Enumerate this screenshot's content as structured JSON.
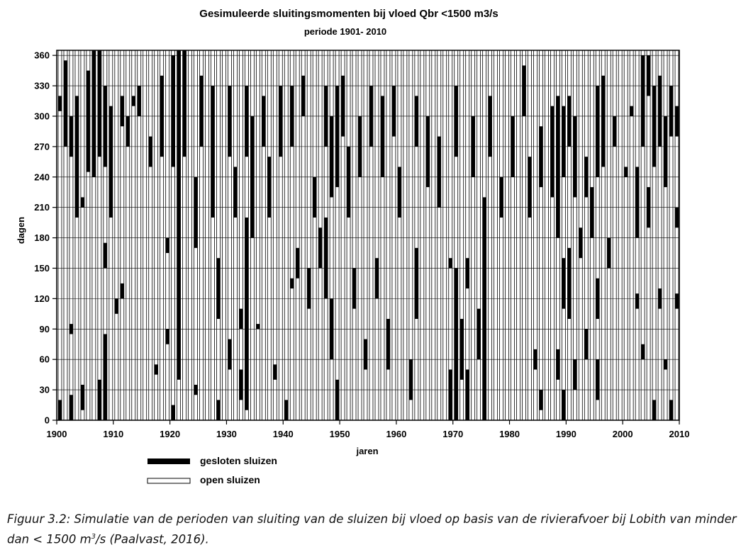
{
  "chart_data": {
    "type": "bar",
    "title": "Gesimuleerde sluitingsmomenten bij vloed Qbr <1500 m3/s",
    "subtitle": "periode 1901- 2010",
    "xlabel": "jaren",
    "ylabel": "dagen",
    "xlim": [
      1900,
      2010
    ],
    "ylim": [
      0,
      365
    ],
    "x_ticks": [
      "1900",
      "1910",
      "1920",
      "1930",
      "1940",
      "1950",
      "1960",
      "1970",
      "1980",
      "1990",
      "2000",
      "2010"
    ],
    "y_ticks": [
      "0",
      "30",
      "60",
      "90",
      "120",
      "150",
      "180",
      "210",
      "240",
      "270",
      "300",
      "330",
      "360"
    ],
    "years": [
      1901,
      2010
    ],
    "days_per_year": 365,
    "grid": "horizontal",
    "legend_position": "bottom-left",
    "series": [
      {
        "name": "gesloten sluizen",
        "color": "#000000"
      },
      {
        "name": "open sluizen",
        "color": "#ffffff"
      }
    ],
    "closed_periods": [
      {
        "year": 1901,
        "from": 0,
        "to": 20
      },
      {
        "year": 1901,
        "from": 305,
        "to": 320
      },
      {
        "year": 1902,
        "from": 270,
        "to": 355
      },
      {
        "year": 1903,
        "from": 0,
        "to": 25
      },
      {
        "year": 1903,
        "from": 85,
        "to": 95
      },
      {
        "year": 1903,
        "from": 260,
        "to": 300
      },
      {
        "year": 1904,
        "from": 200,
        "to": 320
      },
      {
        "year": 1905,
        "from": 10,
        "to": 35
      },
      {
        "year": 1905,
        "from": 210,
        "to": 220
      },
      {
        "year": 1906,
        "from": 245,
        "to": 345
      },
      {
        "year": 1907,
        "from": 240,
        "to": 365
      },
      {
        "year": 1908,
        "from": 0,
        "to": 40
      },
      {
        "year": 1908,
        "from": 260,
        "to": 365
      },
      {
        "year": 1909,
        "from": 0,
        "to": 85
      },
      {
        "year": 1909,
        "from": 150,
        "to": 175
      },
      {
        "year": 1909,
        "from": 250,
        "to": 330
      },
      {
        "year": 1910,
        "from": 200,
        "to": 310
      },
      {
        "year": 1911,
        "from": 105,
        "to": 120
      },
      {
        "year": 1912,
        "from": 120,
        "to": 135
      },
      {
        "year": 1912,
        "from": 290,
        "to": 320
      },
      {
        "year": 1913,
        "from": 270,
        "to": 300
      },
      {
        "year": 1914,
        "from": 310,
        "to": 320
      },
      {
        "year": 1915,
        "from": 300,
        "to": 330
      },
      {
        "year": 1917,
        "from": 250,
        "to": 280
      },
      {
        "year": 1918,
        "from": 45,
        "to": 55
      },
      {
        "year": 1919,
        "from": 260,
        "to": 340
      },
      {
        "year": 1920,
        "from": 165,
        "to": 180
      },
      {
        "year": 1920,
        "from": 75,
        "to": 90
      },
      {
        "year": 1921,
        "from": 0,
        "to": 15
      },
      {
        "year": 1921,
        "from": 250,
        "to": 360
      },
      {
        "year": 1922,
        "from": 40,
        "to": 365
      },
      {
        "year": 1923,
        "from": 260,
        "to": 365
      },
      {
        "year": 1925,
        "from": 170,
        "to": 240
      },
      {
        "year": 1925,
        "from": 25,
        "to": 35
      },
      {
        "year": 1926,
        "from": 270,
        "to": 340
      },
      {
        "year": 1928,
        "from": 200,
        "to": 330
      },
      {
        "year": 1929,
        "from": 0,
        "to": 20
      },
      {
        "year": 1929,
        "from": 100,
        "to": 160
      },
      {
        "year": 1931,
        "from": 50,
        "to": 80
      },
      {
        "year": 1931,
        "from": 260,
        "to": 330
      },
      {
        "year": 1932,
        "from": 200,
        "to": 250
      },
      {
        "year": 1933,
        "from": 20,
        "to": 50
      },
      {
        "year": 1933,
        "from": 90,
        "to": 110
      },
      {
        "year": 1934,
        "from": 10,
        "to": 200
      },
      {
        "year": 1934,
        "from": 260,
        "to": 330
      },
      {
        "year": 1935,
        "from": 180,
        "to": 300
      },
      {
        "year": 1936,
        "from": 90,
        "to": 95
      },
      {
        "year": 1937,
        "from": 270,
        "to": 320
      },
      {
        "year": 1938,
        "from": 200,
        "to": 260
      },
      {
        "year": 1939,
        "from": 40,
        "to": 55
      },
      {
        "year": 1940,
        "from": 260,
        "to": 330
      },
      {
        "year": 1941,
        "from": 0,
        "to": 20
      },
      {
        "year": 1942,
        "from": 270,
        "to": 330
      },
      {
        "year": 1942,
        "from": 130,
        "to": 140
      },
      {
        "year": 1943,
        "from": 140,
        "to": 170
      },
      {
        "year": 1944,
        "from": 300,
        "to": 340
      },
      {
        "year": 1945,
        "from": 110,
        "to": 150
      },
      {
        "year": 1946,
        "from": 200,
        "to": 240
      },
      {
        "year": 1947,
        "from": 150,
        "to": 190
      },
      {
        "year": 1948,
        "from": 120,
        "to": 200
      },
      {
        "year": 1948,
        "from": 270,
        "to": 330
      },
      {
        "year": 1949,
        "from": 60,
        "to": 120
      },
      {
        "year": 1949,
        "from": 220,
        "to": 300
      },
      {
        "year": 1950,
        "from": 0,
        "to": 40
      },
      {
        "year": 1950,
        "from": 230,
        "to": 330
      },
      {
        "year": 1951,
        "from": 280,
        "to": 340
      },
      {
        "year": 1952,
        "from": 200,
        "to": 270
      },
      {
        "year": 1953,
        "from": 110,
        "to": 150
      },
      {
        "year": 1954,
        "from": 240,
        "to": 300
      },
      {
        "year": 1955,
        "from": 50,
        "to": 80
      },
      {
        "year": 1956,
        "from": 270,
        "to": 330
      },
      {
        "year": 1957,
        "from": 120,
        "to": 160
      },
      {
        "year": 1958,
        "from": 240,
        "to": 320
      },
      {
        "year": 1959,
        "from": 50,
        "to": 100
      },
      {
        "year": 1960,
        "from": 280,
        "to": 330
      },
      {
        "year": 1961,
        "from": 200,
        "to": 250
      },
      {
        "year": 1963,
        "from": 20,
        "to": 60
      },
      {
        "year": 1964,
        "from": 100,
        "to": 170
      },
      {
        "year": 1964,
        "from": 270,
        "to": 320
      },
      {
        "year": 1966,
        "from": 230,
        "to": 300
      },
      {
        "year": 1968,
        "from": 210,
        "to": 280
      },
      {
        "year": 1970,
        "from": 0,
        "to": 50
      },
      {
        "year": 1970,
        "from": 150,
        "to": 160
      },
      {
        "year": 1971,
        "from": 0,
        "to": 150
      },
      {
        "year": 1971,
        "from": 260,
        "to": 330
      },
      {
        "year": 1972,
        "from": 40,
        "to": 100
      },
      {
        "year": 1973,
        "from": 0,
        "to": 50
      },
      {
        "year": 1973,
        "from": 130,
        "to": 160
      },
      {
        "year": 1974,
        "from": 240,
        "to": 300
      },
      {
        "year": 1975,
        "from": 60,
        "to": 110
      },
      {
        "year": 1976,
        "from": 0,
        "to": 220
      },
      {
        "year": 1977,
        "from": 260,
        "to": 320
      },
      {
        "year": 1979,
        "from": 200,
        "to": 240
      },
      {
        "year": 1981,
        "from": 240,
        "to": 300
      },
      {
        "year": 1983,
        "from": 300,
        "to": 350
      },
      {
        "year": 1984,
        "from": 200,
        "to": 260
      },
      {
        "year": 1985,
        "from": 50,
        "to": 70
      },
      {
        "year": 1986,
        "from": 10,
        "to": 30
      },
      {
        "year": 1986,
        "from": 230,
        "to": 290
      },
      {
        "year": 1988,
        "from": 220,
        "to": 310
      },
      {
        "year": 1989,
        "from": 40,
        "to": 70
      },
      {
        "year": 1989,
        "from": 180,
        "to": 320
      },
      {
        "year": 1990,
        "from": 0,
        "to": 30
      },
      {
        "year": 1990,
        "from": 110,
        "to": 160
      },
      {
        "year": 1990,
        "from": 240,
        "to": 310
      },
      {
        "year": 1991,
        "from": 100,
        "to": 170
      },
      {
        "year": 1991,
        "from": 270,
        "to": 320
      },
      {
        "year": 1992,
        "from": 30,
        "to": 60
      },
      {
        "year": 1992,
        "from": 220,
        "to": 300
      },
      {
        "year": 1993,
        "from": 160,
        "to": 190
      },
      {
        "year": 1994,
        "from": 60,
        "to": 90
      },
      {
        "year": 1994,
        "from": 220,
        "to": 260
      },
      {
        "year": 1995,
        "from": 180,
        "to": 230
      },
      {
        "year": 1996,
        "from": 20,
        "to": 60
      },
      {
        "year": 1996,
        "from": 100,
        "to": 140
      },
      {
        "year": 1996,
        "from": 240,
        "to": 330
      },
      {
        "year": 1997,
        "from": 250,
        "to": 340
      },
      {
        "year": 1998,
        "from": 150,
        "to": 180
      },
      {
        "year": 1999,
        "from": 270,
        "to": 300
      },
      {
        "year": 2001,
        "from": 240,
        "to": 250
      },
      {
        "year": 2002,
        "from": 300,
        "to": 310
      },
      {
        "year": 2003,
        "from": 180,
        "to": 250
      },
      {
        "year": 2003,
        "from": 110,
        "to": 125
      },
      {
        "year": 2004,
        "from": 270,
        "to": 360
      },
      {
        "year": 2004,
        "from": 60,
        "to": 75
      },
      {
        "year": 2005,
        "from": 190,
        "to": 230
      },
      {
        "year": 2005,
        "from": 320,
        "to": 360
      },
      {
        "year": 2006,
        "from": 0,
        "to": 20
      },
      {
        "year": 2006,
        "from": 250,
        "to": 330
      },
      {
        "year": 2007,
        "from": 110,
        "to": 130
      },
      {
        "year": 2007,
        "from": 270,
        "to": 340
      },
      {
        "year": 2008,
        "from": 50,
        "to": 60
      },
      {
        "year": 2008,
        "from": 230,
        "to": 300
      },
      {
        "year": 2009,
        "from": 0,
        "to": 20
      },
      {
        "year": 2009,
        "from": 280,
        "to": 330
      },
      {
        "year": 2010,
        "from": 190,
        "to": 210
      },
      {
        "year": 2010,
        "from": 110,
        "to": 125
      },
      {
        "year": 2010,
        "from": 280,
        "to": 310
      }
    ]
  },
  "caption": {
    "lead": "Figuur 3.2: Simulatie van de perioden van sluiting van de sluizen bij vloed op basis van de rivierafvoer bij Lobith van minder dan < 1500 m",
    "sup": "3",
    "tail": "/s (Paalvast, 2016)."
  }
}
